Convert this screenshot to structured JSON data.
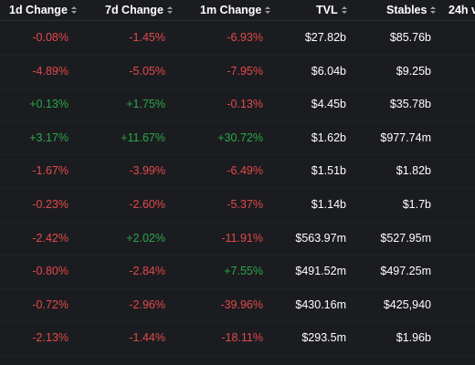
{
  "columns": [
    "1d Change",
    "7d Change",
    "1m Change",
    "TVL",
    "Stables",
    "24h v"
  ],
  "rows": [
    {
      "d1": "-0.08%",
      "d7": "-1.45%",
      "m1": "-6.93%",
      "tvl": "$27.82b",
      "stables": "$85.76b"
    },
    {
      "d1": "-4.89%",
      "d7": "-5.05%",
      "m1": "-7.95%",
      "tvl": "$6.04b",
      "stables": "$9.25b"
    },
    {
      "d1": "+0.13%",
      "d7": "+1.75%",
      "m1": "-0.13%",
      "tvl": "$4.45b",
      "stables": "$35.78b"
    },
    {
      "d1": "+3.17%",
      "d7": "+11.67%",
      "m1": "+30.72%",
      "tvl": "$1.62b",
      "stables": "$977.74m"
    },
    {
      "d1": "-1.67%",
      "d7": "-3.99%",
      "m1": "-6.49%",
      "tvl": "$1.51b",
      "stables": "$1.82b"
    },
    {
      "d1": "-0.23%",
      "d7": "-2.60%",
      "m1": "-5.37%",
      "tvl": "$1.14b",
      "stables": "$1.7b"
    },
    {
      "d1": "-2.42%",
      "d7": "+2.02%",
      "m1": "-11.91%",
      "tvl": "$563.97m",
      "stables": "$527.95m"
    },
    {
      "d1": "-0.80%",
      "d7": "-2.84%",
      "m1": "+7.55%",
      "tvl": "$491.52m",
      "stables": "$497.25m"
    },
    {
      "d1": "-0.72%",
      "d7": "-2.96%",
      "m1": "-39.96%",
      "tvl": "$430.16m",
      "stables": "$425,940"
    },
    {
      "d1": "-2.13%",
      "d7": "-1.44%",
      "m1": "-18.11%",
      "tvl": "$293.5m",
      "stables": "$1.96b"
    }
  ],
  "colors": {
    "background": "#1b1c20",
    "negative": "#e24a4a",
    "positive": "#2aa84a",
    "text": "#ffffff"
  }
}
